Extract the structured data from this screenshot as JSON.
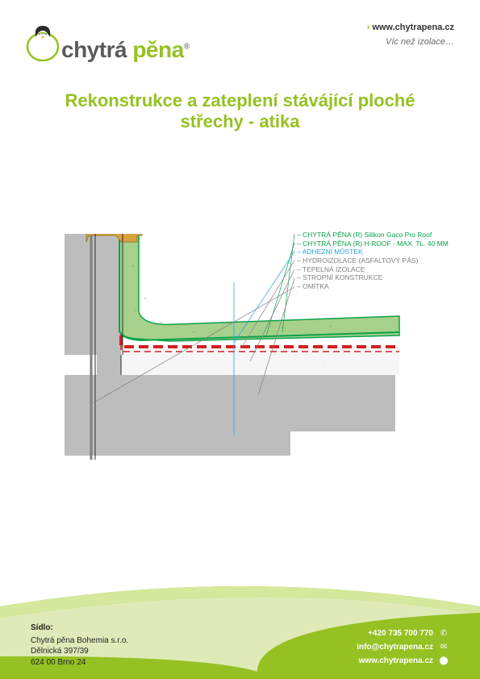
{
  "brand": {
    "word1": "chytrá",
    "word2": "pěna",
    "tagline": "Víc než izolace…",
    "url": "www.chytrapena.cz",
    "green": "#95c122",
    "gray": "#5a5a5a"
  },
  "title": "Rekonstrukce a zateplení stávájící ploché střechy - atika",
  "diagram": {
    "legend": [
      {
        "text": "CHYTRÁ PĚNA (R) Silikon Gaco Pro Roof",
        "color": "#0aa24a"
      },
      {
        "text": "CHYTRÁ PĚNA (R) H ROOF - MAX. TL. 40 MM",
        "color": "#0aa24a"
      },
      {
        "text": "ADHEZNÍ MŮSTEK",
        "color": "#2aa3e6"
      },
      {
        "text": "HYDROIZOLACE (ASFALTOVÝ PÁS)",
        "color": "#808080"
      },
      {
        "text": "TEPELNÁ IZOLACE",
        "color": "#808080"
      },
      {
        "text": "STROPNÍ KONSTRUKCE",
        "color": "#808080"
      },
      {
        "text": "OMÍTKA",
        "color": "#808080"
      }
    ],
    "colors": {
      "wall_fill": "#bdbdbd",
      "insulation_fill": "#f6f6f6",
      "foam_fill": "#a7d08c",
      "foam_stroke": "#0aa24a",
      "hydro_dash": "#d41f1f",
      "adhesion": "#2aa3e6",
      "edge_stroke": "#2b2b2b",
      "flashing": "#d8a23c",
      "leader": "#2aa3e6"
    }
  },
  "footer": {
    "sidlo_label": "Sídlo:",
    "company": "Chytrá pěna Bohemia s.r.o.",
    "street": "Dělnická 397/39",
    "city": "624 00 Brno 24",
    "phone": "+420 735 700 770",
    "email": "info@chytrapena.cz",
    "web": "www.chytrapena.cz"
  }
}
